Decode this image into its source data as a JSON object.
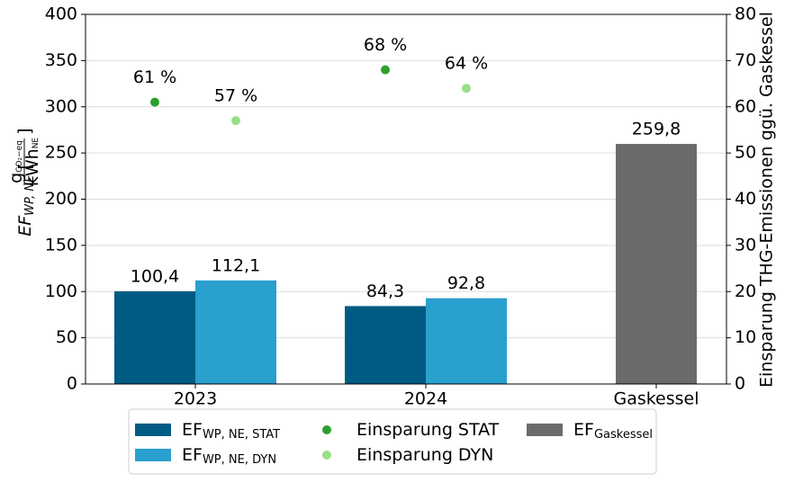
{
  "chart_data": {
    "type": "bar",
    "categories": [
      "2023",
      "2024",
      "Gaskessel"
    ],
    "ylabel": {
      "main": "EF",
      "sub": "WP, NE",
      "num": "g",
      "num_sub": "CO₂−eq",
      "den": "kWh",
      "den_sub": "NE"
    },
    "y2label": "Einsparung THG-Emissionen ggü. Gaskessel",
    "ylim": [
      0,
      400
    ],
    "yticks": [
      0,
      50,
      100,
      150,
      200,
      250,
      300,
      350,
      400
    ],
    "y2lim": [
      0,
      80
    ],
    "y2ticks": [
      0,
      10,
      20,
      30,
      40,
      50,
      60,
      70,
      80
    ],
    "grid": true,
    "series": [
      {
        "name": "EF",
        "subscript": "WP, NE, STAT",
        "type": "bar",
        "color": "#005b84",
        "values": [
          100.4,
          84.3,
          null
        ],
        "value_labels": [
          "100,4",
          "84,3",
          null
        ]
      },
      {
        "name": "EF",
        "subscript": "WP, NE, DYN",
        "type": "bar",
        "color": "#29a0ce",
        "values": [
          112.1,
          92.8,
          null
        ],
        "value_labels": [
          "112,1",
          "92,8",
          null
        ]
      },
      {
        "name": "Einsparung STAT",
        "type": "scatter",
        "axis": "y2",
        "color": "#2ca02c",
        "values": [
          61,
          68,
          null
        ],
        "value_labels": [
          "61 %",
          "68 %",
          null
        ]
      },
      {
        "name": "Einsparung DYN",
        "type": "scatter",
        "axis": "y2",
        "color": "#98df8a",
        "values": [
          57,
          64,
          null
        ],
        "value_labels": [
          "57 %",
          "64 %",
          null
        ]
      },
      {
        "name": "EF",
        "subscript": "Gaskessel",
        "type": "bar",
        "color": "#6b6b6b",
        "values": [
          null,
          null,
          259.8
        ],
        "value_labels": [
          null,
          null,
          "259,8"
        ]
      }
    ]
  }
}
